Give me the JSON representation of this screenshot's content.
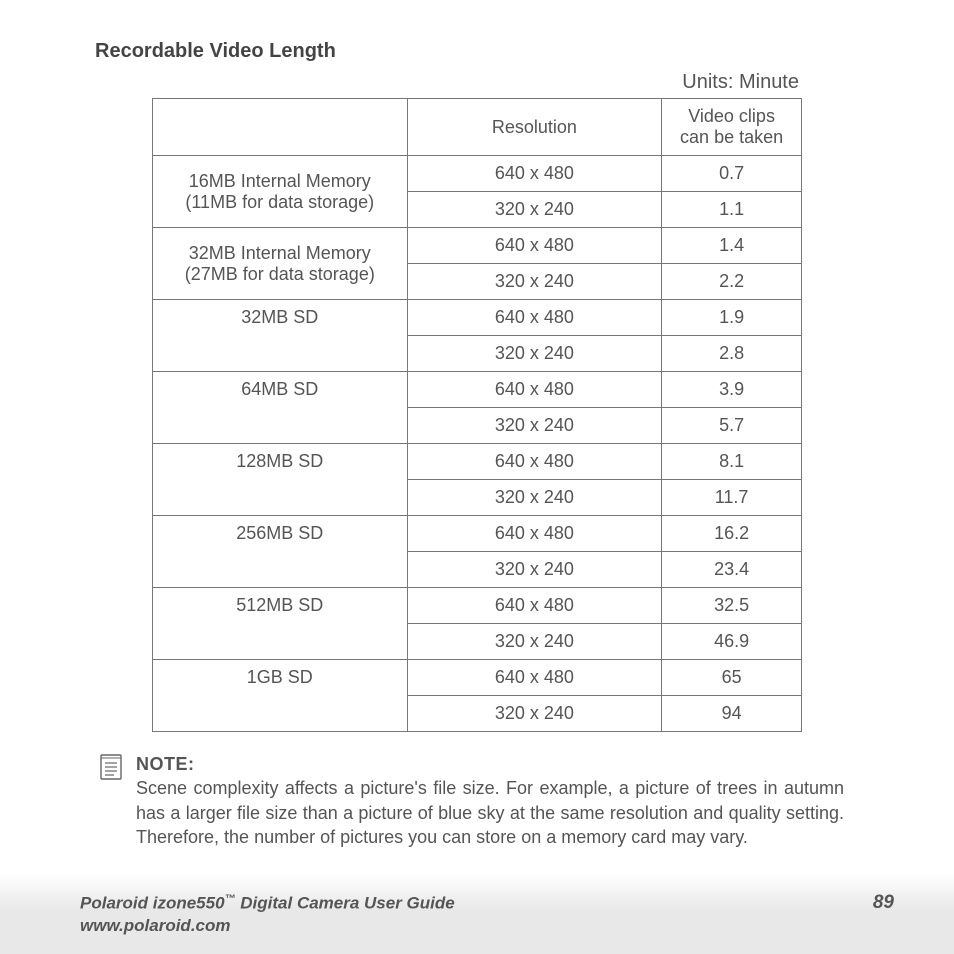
{
  "title": "Recordable Video Length",
  "units": "Units: Minute",
  "table": {
    "header": {
      "c1": "",
      "c2": "Resolution",
      "c3": "Video clips can be taken"
    },
    "rows": [
      {
        "storage_l1": "16MB Internal Memory",
        "storage_l2": "(11MB for data storage)",
        "res1": "640 x 480",
        "v1": "0.7",
        "res2": "320 x 240",
        "v2": "1.1"
      },
      {
        "storage_l1": "32MB Internal Memory",
        "storage_l2": "(27MB for data storage)",
        "res1": "640 x 480",
        "v1": "1.4",
        "res2": "320 x 240",
        "v2": "2.2"
      },
      {
        "storage_l1": "32MB SD",
        "storage_l2": "",
        "res1": "640 x 480",
        "v1": "1.9",
        "res2": "320 x 240",
        "v2": "2.8"
      },
      {
        "storage_l1": "64MB SD",
        "storage_l2": "",
        "res1": "640 x 480",
        "v1": "3.9",
        "res2": "320 x 240",
        "v2": "5.7"
      },
      {
        "storage_l1": "128MB SD",
        "storage_l2": "",
        "res1": "640 x 480",
        "v1": "8.1",
        "res2": "320 x 240",
        "v2": "11.7"
      },
      {
        "storage_l1": "256MB SD",
        "storage_l2": "",
        "res1": "640 x 480",
        "v1": "16.2",
        "res2": "320 x 240",
        "v2": "23.4"
      },
      {
        "storage_l1": "512MB SD",
        "storage_l2": "",
        "res1": "640 x 480",
        "v1": "32.5",
        "res2": "320 x 240",
        "v2": "46.9"
      },
      {
        "storage_l1": "1GB SD",
        "storage_l2": "",
        "res1": "640 x 480",
        "v1": "65",
        "res2": "320 x 240",
        "v2": "94"
      }
    ]
  },
  "note": {
    "label": "NOTE:",
    "body": "Scene complexity affects a picture's file size. For example, a picture of trees in autumn has a larger file size than a picture of blue sky at the same resolution and quality setting. Therefore, the number of pictures you can store on a memory card may vary."
  },
  "footer": {
    "product": "Polaroid izone550",
    "tm": "™",
    "suffix": " Digital Camera User Guide",
    "url": "www.polaroid.com",
    "page": "89"
  }
}
